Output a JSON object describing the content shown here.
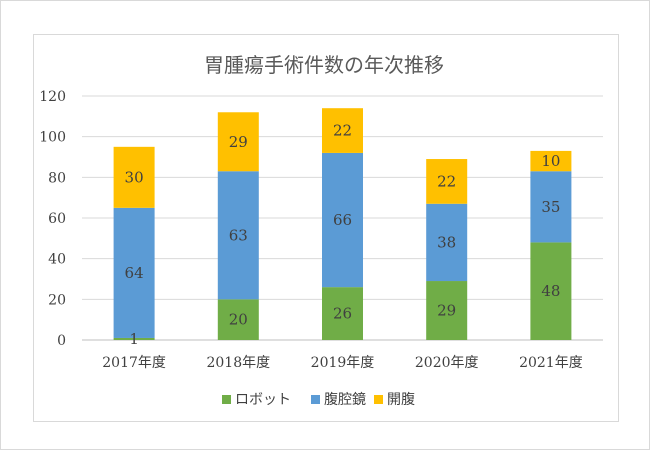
{
  "chart_data": {
    "type": "bar",
    "stacked": true,
    "title": "胃腫瘍手術件数の年次推移",
    "categories": [
      "2017年度",
      "2018年度",
      "2019年度",
      "2020年度",
      "2021年度"
    ],
    "series": [
      {
        "name": "ロボット",
        "color": "#70ad47",
        "values": [
          1,
          20,
          26,
          29,
          48
        ]
      },
      {
        "name": "腹腔鏡",
        "color": "#5b9bd5",
        "values": [
          64,
          63,
          66,
          38,
          35
        ]
      },
      {
        "name": "開腹",
        "color": "#ffc000",
        "values": [
          30,
          29,
          22,
          22,
          10
        ]
      }
    ],
    "ylim": [
      0,
      120
    ],
    "yticks": [
      0,
      20,
      40,
      60,
      80,
      100,
      120
    ],
    "grid": true,
    "legend_position": "bottom"
  }
}
